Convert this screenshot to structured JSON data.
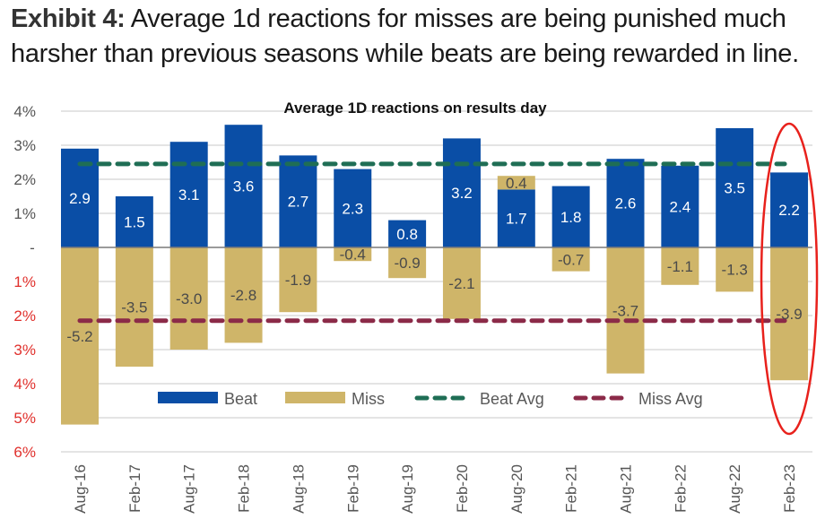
{
  "headline": {
    "exhibit_label": "Exhibit 4:",
    "text": "Average 1d reactions for misses are being punished much harsher than previous seasons while beats are being rewarded in line."
  },
  "colors": {
    "beat": "#0a4ea6",
    "miss": "#cfb569",
    "beat_avg": "#1f6e55",
    "miss_avg": "#8b2a48",
    "highlight": "#e8211c",
    "neg_tick": "#e0302c",
    "pos_tick": "#555555"
  },
  "chart_data": {
    "type": "bar",
    "title": "Average 1D reactions on results day",
    "xlabel": "",
    "ylabel": "",
    "ylim": [
      -6,
      4
    ],
    "grid": true,
    "legend_position": "bottom-inside",
    "y_ticks": [
      {
        "value": 4,
        "label": "4%"
      },
      {
        "value": 3,
        "label": "3%"
      },
      {
        "value": 2,
        "label": "2%"
      },
      {
        "value": 1,
        "label": "1%"
      },
      {
        "value": 0,
        "label": "-"
      },
      {
        "value": -1,
        "label": "1%"
      },
      {
        "value": -2,
        "label": "2%"
      },
      {
        "value": -3,
        "label": "3%"
      },
      {
        "value": -4,
        "label": "4%"
      },
      {
        "value": -5,
        "label": "5%"
      },
      {
        "value": -6,
        "label": "6%"
      }
    ],
    "categories": [
      "Aug-16",
      "Feb-17",
      "Aug-17",
      "Feb-18",
      "Aug-18",
      "Feb-19",
      "Aug-19",
      "Feb-20",
      "Aug-20",
      "Feb-21",
      "Aug-21",
      "Feb-22",
      "Aug-22",
      "Feb-23"
    ],
    "series": [
      {
        "name": "Beat",
        "type": "bar",
        "values": [
          2.9,
          1.5,
          3.1,
          3.6,
          2.7,
          2.3,
          0.8,
          3.2,
          1.7,
          1.8,
          2.6,
          2.4,
          3.5,
          2.2
        ]
      },
      {
        "name": "Miss",
        "type": "bar",
        "values": [
          -5.2,
          -3.5,
          -3.0,
          -2.8,
          -1.9,
          -0.4,
          -0.9,
          -2.1,
          0.4,
          -0.7,
          -3.7,
          -1.1,
          -1.3,
          -3.9
        ]
      },
      {
        "name": "Beat Avg",
        "type": "line-dashed",
        "value": 2.45
      },
      {
        "name": "Miss Avg",
        "type": "line-dashed",
        "value": -2.15
      }
    ],
    "legend": [
      "Beat",
      "Miss",
      "Beat Avg",
      "Miss Avg"
    ],
    "annotations": [
      {
        "type": "ellipse-highlight",
        "category": "Feb-23"
      }
    ]
  }
}
